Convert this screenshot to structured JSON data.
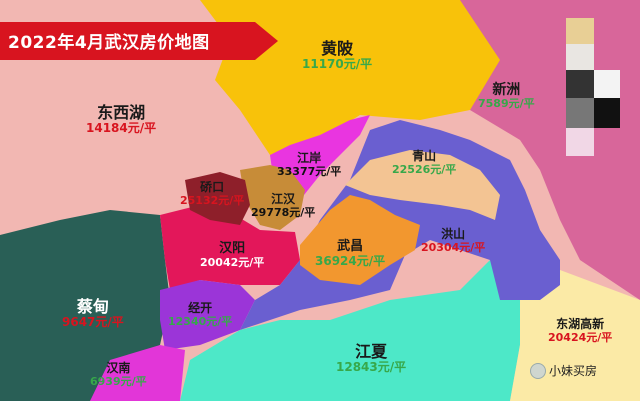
{
  "title": "2022年4月武汉房价地图",
  "colors": {
    "banner": "#d8141f",
    "huangpi": "#f8c20a",
    "dongxihu": "#f2b7b2",
    "xinzhou": "#d8669a",
    "caidian": "#295f56",
    "hanyang": "#e3175a",
    "qiaokou": "#8e1f2a",
    "jianghan": "#c78c38",
    "jiangan": "#e935e0",
    "qingshan": "#f3c493",
    "wuchang": "#f2972f",
    "hongshan": "#6a5fd0",
    "jingkai": "#9b35d8",
    "hannan": "#e236d8",
    "jiangxia": "#4de8c8",
    "donghu_gaoxin": "#fbeaa6"
  },
  "districts": [
    {
      "id": "huangpi",
      "name": "黄陂",
      "price": "11170元/平",
      "price_color": "green"
    },
    {
      "id": "dongxihu",
      "name": "东西湖",
      "price": "14184元/平",
      "price_color": "red"
    },
    {
      "id": "xinzhou",
      "name": "新洲",
      "price": "7589元/平",
      "price_color": "green"
    },
    {
      "id": "jiangan",
      "name": "江岸",
      "price": "33377元/平",
      "price_color": "black"
    },
    {
      "id": "qingshan",
      "name": "青山",
      "price": "22526元/平",
      "price_color": "green"
    },
    {
      "id": "qiaokou",
      "name": "硚口",
      "price": "25132元/平",
      "price_color": "red"
    },
    {
      "id": "jianghan",
      "name": "江汉",
      "price": "29778元/平",
      "price_color": "black"
    },
    {
      "id": "hanyang",
      "name": "汉阳",
      "price": "20042元/平",
      "price_color": "white"
    },
    {
      "id": "wuchang",
      "name": "武昌",
      "price": "36924元/平",
      "price_color": "green"
    },
    {
      "id": "hongshan",
      "name": "洪山",
      "price": "20304元/平",
      "price_color": "red"
    },
    {
      "id": "caidian",
      "name": "蔡甸",
      "price": "9647元/平",
      "price_color": "red"
    },
    {
      "id": "jingkai",
      "name": "经开",
      "price": "12340元/平",
      "price_color": "green"
    },
    {
      "id": "jiangxia",
      "name": "江夏",
      "price": "12843元/平",
      "price_color": "green"
    },
    {
      "id": "donghu_gaoxin",
      "name": "东湖高新",
      "price": "20424元/平",
      "price_color": "red"
    },
    {
      "id": "hannan",
      "name": "汉南",
      "price": "6939元/平",
      "price_color": "green"
    }
  ],
  "watermark": "小妹买房"
}
